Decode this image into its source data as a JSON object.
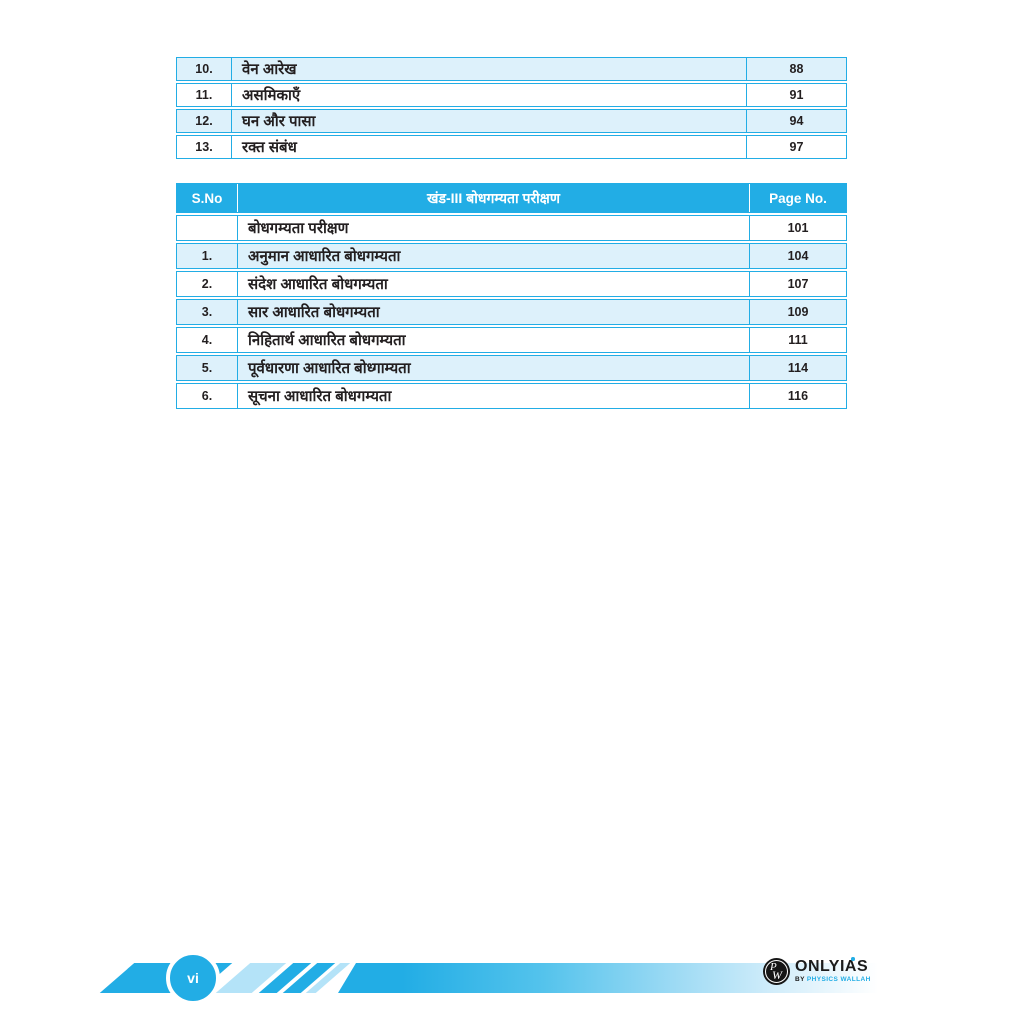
{
  "colors": {
    "accent": "#22ade5",
    "row_light": "#ddf1fb",
    "text": "#231f20"
  },
  "table1": {
    "rows": [
      {
        "sno": "10.",
        "title": "वेन आरेख",
        "page": "88"
      },
      {
        "sno": "11.",
        "title": "असमिकाएँ",
        "page": "91"
      },
      {
        "sno": "12.",
        "title": "घन और पासा",
        "page": "94"
      },
      {
        "sno": "13.",
        "title": "रक्त संबंध",
        "page": "97"
      }
    ]
  },
  "table2": {
    "headers": {
      "sno": "S.No",
      "section": "खंड-III बोधगम्यता परीक्षण",
      "page": "Page No."
    },
    "rows": [
      {
        "sno": "",
        "title": "बोधगम्यता परीक्षण",
        "page": "101"
      },
      {
        "sno": "1.",
        "title": "अनुमान आधारित बोधगम्यता",
        "page": "104"
      },
      {
        "sno": "2.",
        "title": "संदेश आधारित बोधगम्यता",
        "page": "107"
      },
      {
        "sno": "3.",
        "title": "सार आधारित बोधगम्यता",
        "page": "109"
      },
      {
        "sno": "4.",
        "title": "निहितार्थ आधारित बोधगम्यता",
        "page": "111"
      },
      {
        "sno": "5.",
        "title": "पूर्वधारणा आधारित बोध्गाम्यता",
        "page": "114"
      },
      {
        "sno": "6.",
        "title": "सूचना आधारित बोधगम्यता",
        "page": "116"
      }
    ]
  },
  "footer": {
    "page_label": "vi",
    "logo": {
      "monogram_p": "P",
      "monogram_w": "W",
      "name": "ONLYIAS",
      "tagline_by": "BY",
      "tagline_rest": " PHYSICS WALLAH"
    }
  }
}
